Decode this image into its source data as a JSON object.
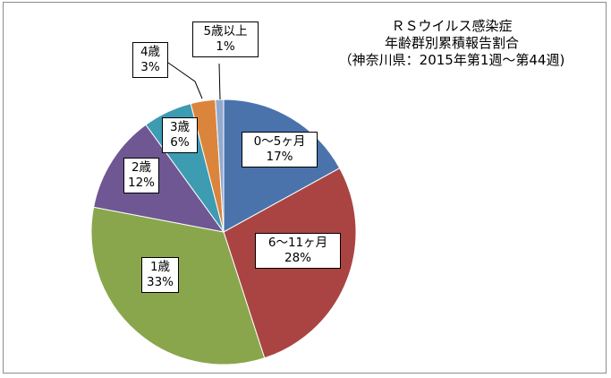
{
  "chart_data": {
    "type": "pie",
    "title_lines": [
      "ＲＳウイルス感染症",
      "年齢群別累積報告割合",
      "（神奈川県：2015年第1週〜第44週)"
    ],
    "slices": [
      {
        "label": "0〜5ヶ月",
        "pct_label": "17%",
        "value": 17,
        "color": "#4a73ac"
      },
      {
        "label": "6〜11ヶ月",
        "pct_label": "28%",
        "value": 28,
        "color": "#aa4442"
      },
      {
        "label": "1歳",
        "pct_label": "33%",
        "value": 33,
        "color": "#89a64c"
      },
      {
        "label": "2歳",
        "pct_label": "12%",
        "value": 12,
        "color": "#6e5792"
      },
      {
        "label": "3歳",
        "pct_label": "6%",
        "value": 6,
        "color": "#3d9bb2"
      },
      {
        "label": "4歳",
        "pct_label": "3%",
        "value": 3,
        "color": "#db843c"
      },
      {
        "label": "5歳以上",
        "pct_label": "1%",
        "value": 1,
        "color": "#93a9cf"
      }
    ]
  }
}
